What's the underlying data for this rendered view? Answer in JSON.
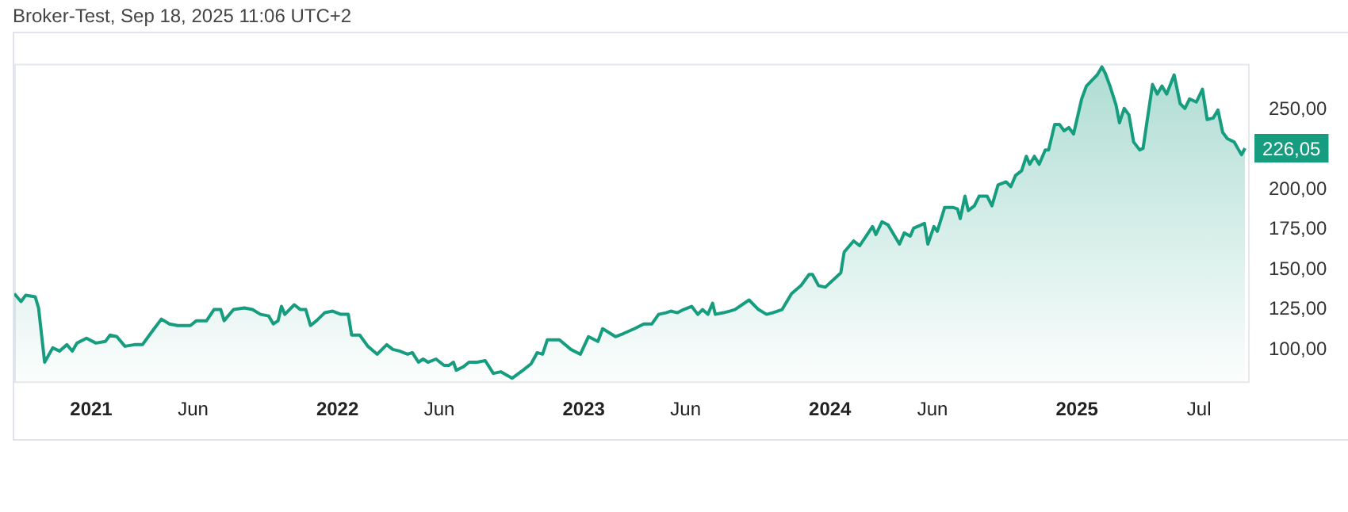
{
  "chart_data": {
    "type": "area",
    "title": "Broker-Test, Sep 18, 2025 11:06 UTC+2",
    "x": [
      "2020-09-09",
      "2020-09-19",
      "2020-09-26",
      "2020-10-10",
      "2020-10-15",
      "2020-10-24",
      "2020-11-05",
      "2020-11-15",
      "2020-11-26",
      "2020-12-04",
      "2020-12-11",
      "2020-12-25",
      "2021-01-08",
      "2021-01-22",
      "2021-01-29",
      "2021-02-08",
      "2021-02-20",
      "2021-03-06",
      "2021-03-18",
      "2021-03-30",
      "2021-04-15",
      "2021-04-27",
      "2021-05-09",
      "2021-05-28",
      "2021-06-06",
      "2021-06-21",
      "2021-07-02",
      "2021-07-12",
      "2021-07-17",
      "2021-07-31",
      "2021-08-16",
      "2021-08-28",
      "2021-09-09",
      "2021-09-21",
      "2021-09-28",
      "2021-10-05",
      "2021-10-10",
      "2021-10-15",
      "2021-10-29",
      "2021-11-07",
      "2021-11-15",
      "2021-11-22",
      "2021-12-01",
      "2021-12-13",
      "2021-12-25",
      "2022-01-06",
      "2022-01-17",
      "2022-01-22",
      "2022-02-03",
      "2022-02-15",
      "2022-03-01",
      "2022-03-15",
      "2022-03-24",
      "2022-04-03",
      "2022-04-15",
      "2022-04-22",
      "2022-05-01",
      "2022-05-08",
      "2022-05-15",
      "2022-05-27",
      "2022-06-08",
      "2022-06-15",
      "2022-06-22",
      "2022-06-26",
      "2022-07-06",
      "2022-07-15",
      "2022-07-27",
      "2022-08-08",
      "2022-08-20",
      "2022-08-31",
      "2022-09-17",
      "2022-10-03",
      "2022-10-15",
      "2022-10-24",
      "2022-11-01",
      "2022-11-08",
      "2022-11-26",
      "2022-12-13",
      "2022-12-27",
      "2023-01-08",
      "2023-01-22",
      "2023-01-29",
      "2023-02-17",
      "2023-03-01",
      "2023-03-17",
      "2023-03-31",
      "2023-04-12",
      "2023-04-22",
      "2023-05-03",
      "2023-05-10",
      "2023-05-20",
      "2023-05-29",
      "2023-06-10",
      "2023-06-19",
      "2023-06-26",
      "2023-07-04",
      "2023-07-11",
      "2023-07-15",
      "2023-07-27",
      "2023-08-05",
      "2023-08-13",
      "2023-09-03",
      "2023-09-17",
      "2023-09-29",
      "2023-10-08",
      "2023-10-22",
      "2023-11-05",
      "2023-11-19",
      "2023-12-01",
      "2023-12-06",
      "2023-12-15",
      "2023-12-25",
      "2024-01-17",
      "2024-01-22",
      "2024-02-05",
      "2024-02-14",
      "2024-03-04",
      "2024-03-09",
      "2024-03-18",
      "2024-03-27",
      "2024-04-13",
      "2024-04-20",
      "2024-04-29",
      "2024-05-04",
      "2024-05-15",
      "2024-05-20",
      "2024-05-25",
      "2024-06-03",
      "2024-06-08",
      "2024-06-19",
      "2024-07-01",
      "2024-07-08",
      "2024-07-12",
      "2024-07-19",
      "2024-07-24",
      "2024-08-02",
      "2024-08-09",
      "2024-08-21",
      "2024-08-28",
      "2024-09-06",
      "2024-09-18",
      "2024-09-25",
      "2024-10-02",
      "2024-10-11",
      "2024-10-18",
      "2024-10-23",
      "2024-10-30",
      "2024-11-06",
      "2024-11-15",
      "2024-11-20",
      "2024-11-29",
      "2024-12-06",
      "2024-12-13",
      "2024-12-20",
      "2024-12-27",
      "2025-01-08",
      "2025-01-15",
      "2025-01-24",
      "2025-01-31",
      "2025-02-07",
      "2025-02-12",
      "2025-02-19",
      "2025-02-28",
      "2025-03-05",
      "2025-03-12",
      "2025-03-19",
      "2025-03-26",
      "2025-04-04",
      "2025-04-09",
      "2025-04-23",
      "2025-04-30",
      "2025-05-07",
      "2025-05-14",
      "2025-05-25",
      "2025-06-03",
      "2025-06-10",
      "2025-06-17",
      "2025-06-27",
      "2025-07-06",
      "2025-07-13",
      "2025-07-22",
      "2025-07-29",
      "2025-08-05",
      "2025-08-12",
      "2025-08-22",
      "2025-08-26",
      "2025-09-02",
      "2025-09-07"
    ],
    "series": [
      {
        "color": "#169c7f",
        "values": [
          135,
          130,
          134,
          133,
          126,
          92,
          101,
          99,
          103,
          99,
          104,
          107,
          104,
          105,
          109,
          108,
          102,
          103,
          103,
          110,
          119,
          116,
          115,
          115,
          118,
          118,
          125,
          125,
          118,
          125,
          126,
          125,
          122,
          121,
          116,
          118,
          127,
          122,
          128,
          125,
          125,
          115,
          118,
          123,
          124,
          122,
          122,
          109,
          109,
          102,
          97,
          103,
          100,
          99,
          97,
          98,
          92,
          94,
          92,
          94,
          90,
          90,
          92,
          87,
          89,
          92,
          92,
          93,
          85,
          86,
          82,
          87,
          91,
          98,
          97,
          106,
          106,
          100,
          97,
          108,
          105,
          113,
          108,
          110,
          113,
          116,
          116,
          122,
          123,
          124,
          123,
          125,
          127,
          122,
          125,
          122,
          129,
          122,
          123,
          124,
          125,
          131,
          125,
          122,
          123,
          125,
          135,
          140,
          147,
          147,
          140,
          139,
          148,
          161,
          168,
          165,
          177,
          172,
          180,
          178,
          166,
          173,
          171,
          176,
          178,
          179,
          166,
          177,
          174,
          189,
          189,
          188,
          182,
          196,
          187,
          190,
          196,
          196,
          190,
          203,
          205,
          202,
          209,
          212,
          221,
          216,
          221,
          216,
          225,
          225,
          241,
          241,
          237,
          239,
          235,
          257,
          265,
          269,
          272,
          277,
          273,
          265,
          253,
          242,
          251,
          247,
          230,
          225,
          226,
          266,
          260,
          265,
          260,
          272,
          254,
          251,
          257,
          255,
          263,
          244,
          245,
          250,
          236,
          232,
          230,
          227,
          222,
          226.05
        ]
      }
    ],
    "xlim": [
      "2020-09-09",
      "2025-09-14"
    ],
    "xticks": [
      {
        "value": "2021-01-01",
        "label": "2021"
      },
      {
        "value": "2021-06-01",
        "label": "Jun"
      },
      {
        "value": "2022-01-01",
        "label": "2022"
      },
      {
        "value": "2022-06-01",
        "label": "Jun"
      },
      {
        "value": "2023-01-01",
        "label": "2023"
      },
      {
        "value": "2023-06-01",
        "label": "Jun"
      },
      {
        "value": "2024-01-01",
        "label": "2024"
      },
      {
        "value": "2024-06-01",
        "label": "Jun"
      },
      {
        "value": "2025-01-01",
        "label": "2025"
      },
      {
        "value": "2025-07-01",
        "label": "Jul"
      }
    ],
    "ylim": [
      79,
      279
    ],
    "yticks": [
      {
        "value": 100,
        "label": "100,00"
      },
      {
        "value": 125,
        "label": "125,00"
      },
      {
        "value": 150,
        "label": "150,00"
      },
      {
        "value": 175,
        "label": "175,00"
      },
      {
        "value": 200,
        "label": "200,00"
      },
      {
        "value": 250,
        "label": "250,00"
      }
    ],
    "annotations": [
      {
        "text": "226,05",
        "x": "2025-09-07",
        "y": 226.05
      }
    ],
    "grid": false,
    "legend": false
  }
}
